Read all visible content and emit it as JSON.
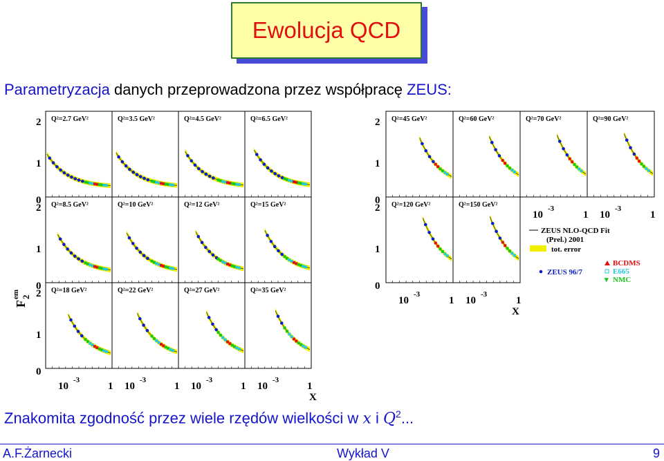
{
  "slide": {
    "title": "Ewolucja QCD",
    "intro_prefix": "Parametryzacja",
    "intro_middle": " danych przeprowadzona przez współpracę ",
    "intro_suffix": "ZEUS:",
    "bottom_text": "Znakomita zgodność przez wiele rzędów wielkości w ",
    "bottom_var_x": "x",
    "bottom_and": " i ",
    "bottom_var_q": "Q",
    "bottom_exp": "2",
    "bottom_end": "...",
    "footer_left": "A.F.Żarnecki",
    "footer_center": "Wykład V",
    "footer_right": "9"
  },
  "figure": {
    "y_axis_label": "F",
    "y_axis_sup": "em",
    "y_axis_sub": "2",
    "x_axis_label": "x",
    "y_ticks": [
      "2",
      "1",
      "0"
    ],
    "x_ticks": [
      "10",
      "-3",
      "1"
    ],
    "left_panels": [
      "Q²=2.7 GeV²",
      "Q²=3.5 GeV²",
      "Q²=4.5 GeV²",
      "Q²=6.5 GeV²",
      "Q²=8.5 GeV²",
      "Q²=10 GeV²",
      "Q²=12 GeV²",
      "Q²=15 GeV²",
      "Q²=18 GeV²",
      "Q²=22 GeV²",
      "Q²=27 GeV²",
      "Q²=35 GeV²"
    ],
    "right_panels": [
      "Q²=45 GeV²",
      "Q²=60 GeV²",
      "Q²=70 GeV²",
      "Q²=90 GeV²",
      "Q²=120 GeV²",
      "Q²=150 GeV²"
    ],
    "legend": {
      "fit_line1": "ZEUS NLO-QCD Fit",
      "fit_line2": "(Prel.) 2001",
      "tot_error": "tot. error",
      "zeus": "ZEUS 96/7",
      "bcdms": "BCDMS",
      "e665": "E665",
      "nmc": "NMC"
    },
    "colors": {
      "zeus": "#0a1ec8",
      "bcdms": "#e01010",
      "e665": "#22c8e0",
      "nmc": "#18c818",
      "fit": "#505000",
      "error_band": "#f0f000"
    }
  }
}
